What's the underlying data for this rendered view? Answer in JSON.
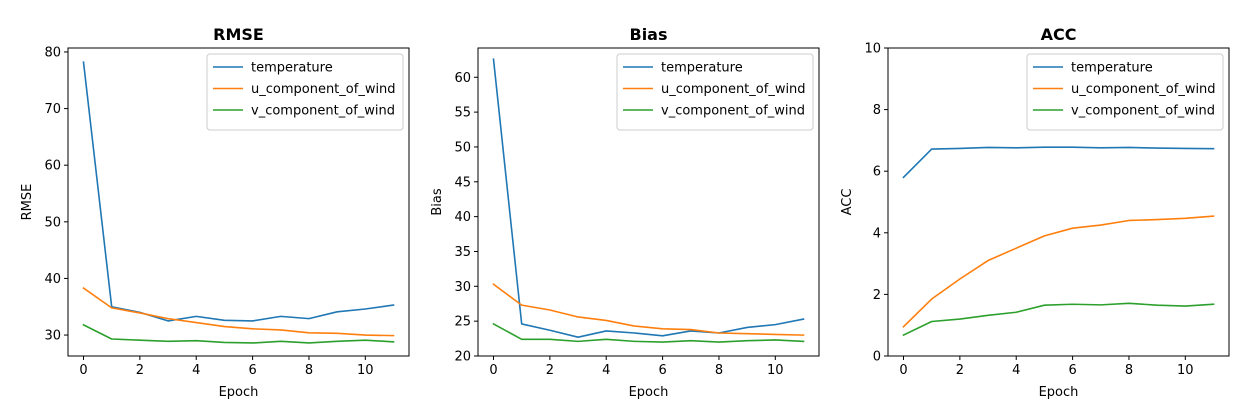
{
  "chart_data": [
    {
      "type": "line",
      "title": "RMSE",
      "xlabel": "Epoch",
      "ylabel": "RMSE",
      "x": [
        0,
        1,
        2,
        3,
        4,
        5,
        6,
        7,
        8,
        9,
        10,
        11
      ],
      "xlim": [
        -0.55,
        11.55
      ],
      "ylim": [
        26.3,
        80.7
      ],
      "xticks": [
        0,
        2,
        4,
        6,
        8,
        10
      ],
      "yticks": [
        30,
        40,
        50,
        60,
        70,
        80
      ],
      "legend_position": "top-right",
      "series": [
        {
          "name": "temperature",
          "color": "#1f77b4",
          "values": [
            78.2,
            35.0,
            34.0,
            32.5,
            33.3,
            32.6,
            32.5,
            33.3,
            32.9,
            34.1,
            34.6,
            35.3
          ]
        },
        {
          "name": "u_component_of_wind",
          "color": "#ff7f0e",
          "values": [
            38.3,
            34.8,
            33.9,
            32.9,
            32.2,
            31.5,
            31.1,
            30.9,
            30.4,
            30.3,
            30.0,
            29.9
          ]
        },
        {
          "name": "v_component_of_wind",
          "color": "#2ca02c",
          "values": [
            31.8,
            29.3,
            29.1,
            28.9,
            29.0,
            28.7,
            28.6,
            28.9,
            28.6,
            28.9,
            29.1,
            28.8
          ]
        }
      ]
    },
    {
      "type": "line",
      "title": "Bias",
      "xlabel": "Epoch",
      "ylabel": "Bias",
      "x": [
        0,
        1,
        2,
        3,
        4,
        5,
        6,
        7,
        8,
        9,
        10,
        11
      ],
      "xlim": [
        -0.55,
        11.55
      ],
      "ylim": [
        20,
        64.2
      ],
      "xticks": [
        0,
        2,
        4,
        6,
        8,
        10
      ],
      "yticks": [
        20,
        25,
        30,
        35,
        40,
        45,
        50,
        55,
        60
      ],
      "legend_position": "top-right",
      "series": [
        {
          "name": "temperature",
          "color": "#1f77b4",
          "values": [
            62.6,
            24.6,
            23.7,
            22.7,
            23.6,
            23.3,
            22.9,
            23.6,
            23.3,
            24.1,
            24.5,
            25.3
          ]
        },
        {
          "name": "u_component_of_wind",
          "color": "#ff7f0e",
          "values": [
            30.3,
            27.3,
            26.6,
            25.6,
            25.1,
            24.3,
            23.9,
            23.8,
            23.3,
            23.2,
            23.1,
            23.0
          ]
        },
        {
          "name": "v_component_of_wind",
          "color": "#2ca02c",
          "values": [
            24.6,
            22.4,
            22.4,
            22.1,
            22.4,
            22.1,
            22.0,
            22.2,
            22.0,
            22.2,
            22.3,
            22.1
          ]
        }
      ]
    },
    {
      "type": "line",
      "title": "ACC",
      "xlabel": "Epoch",
      "ylabel": "ACC",
      "x": [
        0,
        1,
        2,
        3,
        4,
        5,
        6,
        7,
        8,
        9,
        10,
        11
      ],
      "xlim": [
        -0.55,
        11.55
      ],
      "ylim": [
        0,
        10
      ],
      "xticks": [
        0,
        2,
        4,
        6,
        8,
        10
      ],
      "yticks": [
        0,
        2,
        4,
        6,
        8,
        10
      ],
      "legend_position": "top-right",
      "series": [
        {
          "name": "temperature",
          "color": "#1f77b4",
          "values": [
            5.8,
            6.72,
            6.74,
            6.77,
            6.76,
            6.78,
            6.78,
            6.76,
            6.77,
            6.75,
            6.74,
            6.73
          ]
        },
        {
          "name": "u_component_of_wind",
          "color": "#ff7f0e",
          "values": [
            0.95,
            1.85,
            2.5,
            3.1,
            3.5,
            3.9,
            4.15,
            4.25,
            4.4,
            4.43,
            4.47,
            4.54
          ]
        },
        {
          "name": "v_component_of_wind",
          "color": "#2ca02c",
          "values": [
            0.68,
            1.12,
            1.2,
            1.32,
            1.42,
            1.65,
            1.68,
            1.66,
            1.71,
            1.65,
            1.62,
            1.68
          ]
        }
      ]
    }
  ]
}
